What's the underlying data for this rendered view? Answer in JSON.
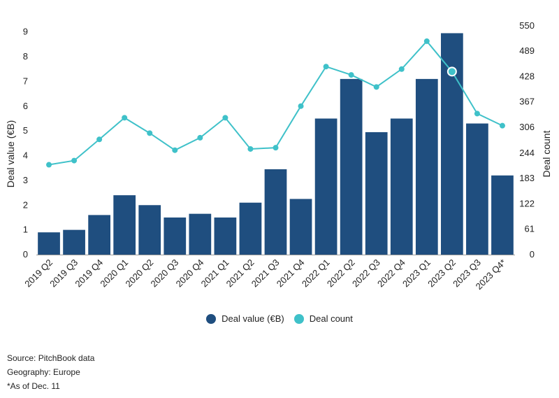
{
  "chart_data": {
    "type": "bar",
    "categories": [
      "2019 Q2",
      "2019 Q3",
      "2019 Q4",
      "2020 Q1",
      "2020 Q2",
      "2020 Q3",
      "2020 Q4",
      "2021 Q1",
      "2021 Q2",
      "2021 Q3",
      "2021 Q4",
      "2022 Q1",
      "2022 Q2",
      "2022 Q3",
      "2022 Q4",
      "2023 Q1",
      "2023 Q2",
      "2023 Q3",
      "2023 Q4*"
    ],
    "series": [
      {
        "name": "Deal value (€B)",
        "type": "bar",
        "axis": "left",
        "color": "#1f4e7f",
        "values": [
          0.9,
          1.0,
          1.6,
          2.4,
          2.0,
          1.5,
          1.65,
          1.5,
          2.1,
          3.45,
          2.25,
          5.5,
          7.1,
          4.95,
          5.5,
          7.1,
          8.95,
          5.3,
          3.2
        ]
      },
      {
        "name": "Deal count",
        "type": "line",
        "axis": "right",
        "color": "#3fc1c9",
        "values": [
          216,
          226,
          277,
          329,
          292,
          251,
          281,
          329,
          254,
          257,
          357,
          452,
          432,
          403,
          446,
          513,
          440,
          339,
          310
        ]
      }
    ],
    "ylabel": "Deal value (€B)",
    "y2label": "Deal count",
    "ylim": [
      0,
      9.5
    ],
    "y2lim": [
      0,
      565
    ],
    "yticks": [
      "0",
      "1",
      "2",
      "3",
      "4",
      "5",
      "6",
      "7",
      "8",
      "9"
    ],
    "y2ticks": [
      "0",
      "61",
      "122",
      "183",
      "244",
      "306",
      "367",
      "428",
      "489",
      "550"
    ],
    "highlight_index": 16,
    "legend_position": "bottom"
  },
  "legend": {
    "deal_value": "Deal value (€B)",
    "deal_count": "Deal count"
  },
  "footnotes": {
    "source": "Source: PitchBook data",
    "geography": "Geography: Europe",
    "note": "*As of Dec. 11"
  },
  "colors": {
    "bar": "#1f4e7f",
    "line": "#3fc1c9"
  }
}
